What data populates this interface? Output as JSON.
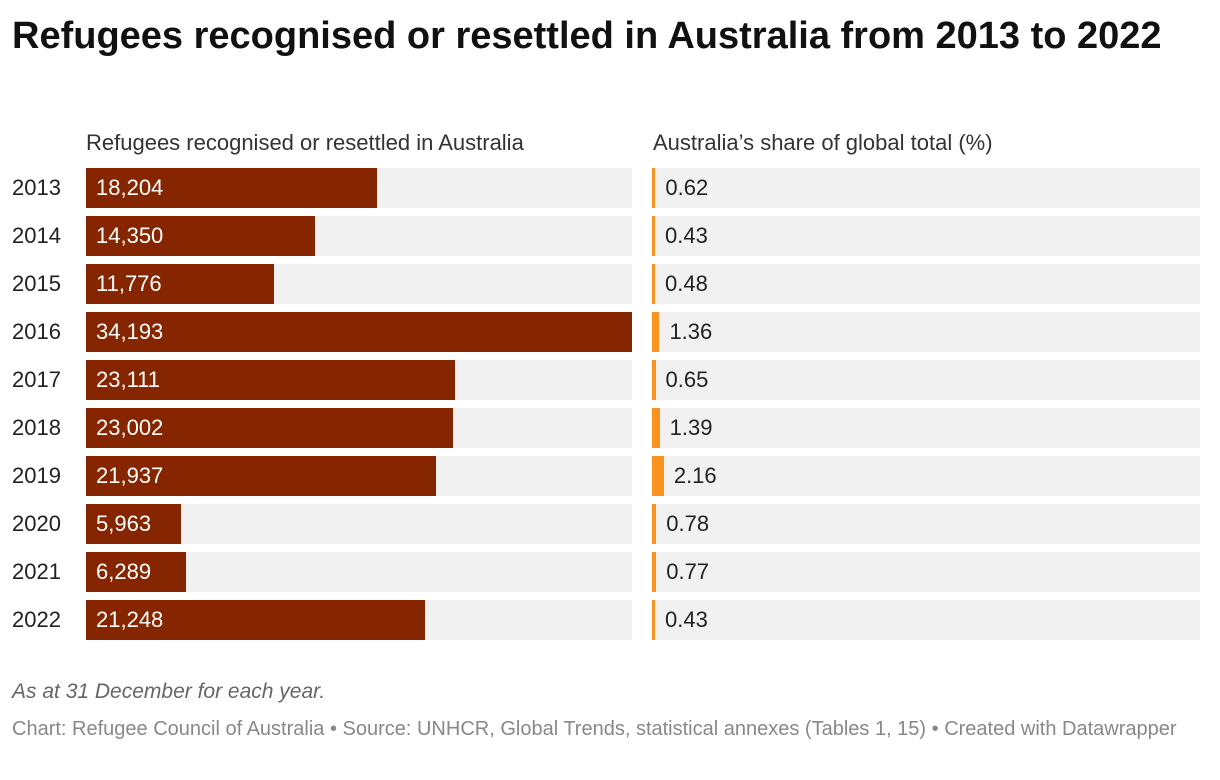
{
  "title": "Refugees recognised or resettled in Australia from 2013 to 2022",
  "note": "As at 31 December for each year.",
  "footer": "Chart: Refugee Council of Australia • Source: UNHCR, Global Trends, statistical annexes (Tables 1, 15) • Created with Datawrapper",
  "colors": {
    "primary_bar": "#862600",
    "share_bar": "#f7931e",
    "track": "#f1f1f1"
  },
  "chart_data": {
    "type": "bar",
    "orientation": "horizontal",
    "title": "Refugees recognised or resettled in Australia from 2013 to 2022",
    "categories": [
      "2013",
      "2014",
      "2015",
      "2016",
      "2017",
      "2018",
      "2019",
      "2020",
      "2021",
      "2022"
    ],
    "series": [
      {
        "name": "Refugees recognised or resettled in Australia",
        "values": [
          18204,
          14350,
          11776,
          34193,
          23111,
          23002,
          21937,
          5963,
          6289,
          21248
        ],
        "labels": [
          "18,204",
          "14,350",
          "11,776",
          "34,193",
          "23,111",
          "23,002",
          "21,937",
          "5,963",
          "6,289",
          "21,248"
        ],
        "xlim": [
          0,
          34193
        ]
      },
      {
        "name": "Australia’s share of global total (%)",
        "values": [
          0.62,
          0.43,
          0.48,
          1.36,
          0.65,
          1.39,
          2.16,
          0.78,
          0.77,
          0.43
        ],
        "labels": [
          "0.62",
          "0.43",
          "0.48",
          "1.36",
          "0.65",
          "1.39",
          "2.16",
          "0.78",
          "0.77",
          "0.43"
        ],
        "xlim": [
          0,
          100
        ]
      }
    ]
  }
}
